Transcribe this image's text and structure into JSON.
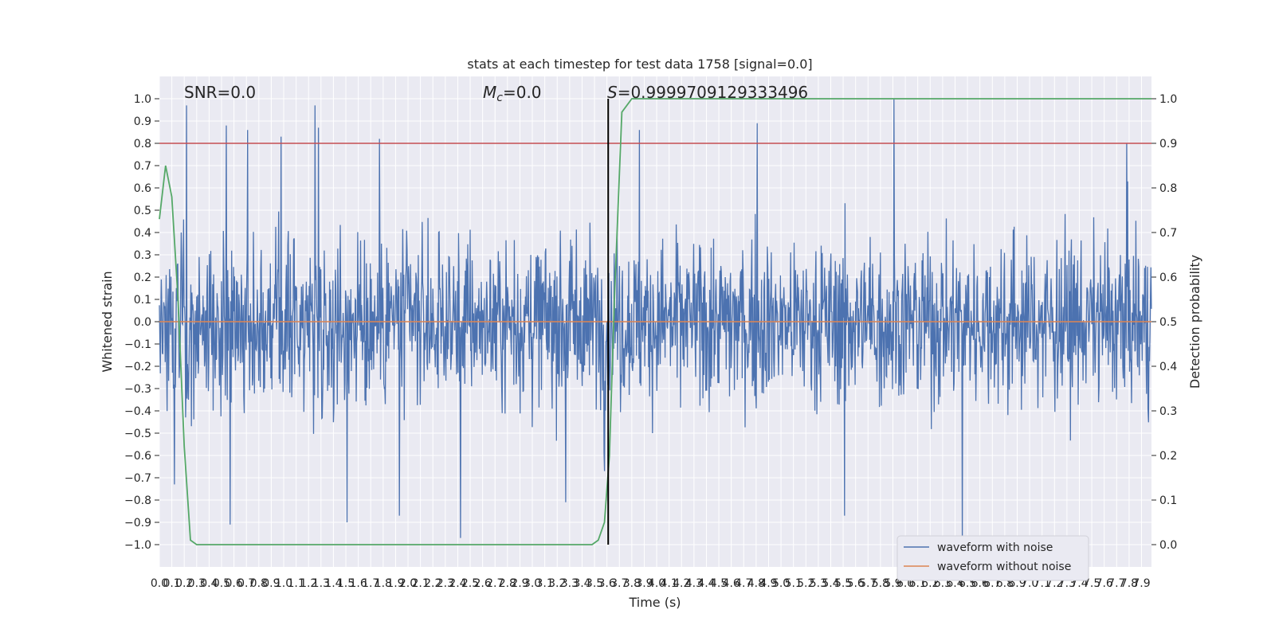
{
  "chart_data": {
    "type": "line",
    "title": "stats at each timestep for test data 1758 [signal=0.0]",
    "xlabel": "Time (s)",
    "ylabel": "Whitened strain",
    "ylabel_right": "Detection probability",
    "xlim": [
      0.0,
      7.98
    ],
    "ylim": [
      -1.1,
      1.1
    ],
    "ylim_right": [
      -0.05,
      1.05
    ],
    "x_ticks": [
      "0.0",
      "0.1",
      "0.2",
      "0.3",
      "0.4",
      "0.5",
      "0.6",
      "0.7",
      "0.8",
      "0.9",
      "1.0",
      "1.1",
      "1.2",
      "1.3",
      "1.4",
      "1.5",
      "1.6",
      "1.7",
      "1.8",
      "1.9",
      "2.0",
      "2.1",
      "2.2",
      "2.3",
      "2.4",
      "2.5",
      "2.6",
      "2.7",
      "2.8",
      "2.9",
      "3.0",
      "3.1",
      "3.2",
      "3.3",
      "3.4",
      "3.5",
      "3.6",
      "3.7",
      "3.8",
      "3.9",
      "4.0",
      "4.1",
      "4.2",
      "4.3",
      "4.4",
      "4.5",
      "4.6",
      "4.7",
      "4.8",
      "4.9",
      "5.0",
      "5.1",
      "5.2",
      "5.3",
      "5.4",
      "5.5",
      "5.6",
      "5.7",
      "5.8",
      "5.9",
      "6.0",
      "6.1",
      "6.2",
      "6.3",
      "6.4",
      "6.5",
      "6.6",
      "6.7",
      "6.8",
      "6.9",
      "7.0",
      "7.1",
      "7.2",
      "7.3",
      "7.4",
      "7.5",
      "7.6",
      "7.7",
      "7.8",
      "7.9"
    ],
    "y_ticks_left": [
      "−1.0",
      "−0.9",
      "−0.8",
      "−0.7",
      "−0.6",
      "−0.5",
      "−0.4",
      "−0.3",
      "−0.2",
      "−0.1",
      "0.0",
      "0.1",
      "0.2",
      "0.3",
      "0.4",
      "0.5",
      "0.6",
      "0.7",
      "0.8",
      "0.9",
      "1.0"
    ],
    "y_ticks_right": [
      "0.0",
      "0.1",
      "0.2",
      "0.3",
      "0.4",
      "0.5",
      "0.6",
      "0.7",
      "0.8",
      "0.9",
      "1.0"
    ],
    "annotations": {
      "snr": "SNR=0.0",
      "mc_symbol": "M",
      "mc_sub": "c",
      "mc_value": "=0.0",
      "s_symbol": "S",
      "s_value": "=0.9999709129333496"
    },
    "threshold": {
      "value": 0.8,
      "color": "#c44e52"
    },
    "peak_marker": {
      "x": 3.61,
      "color": "#000000"
    },
    "grid": true,
    "legend_position": "lower-right",
    "background": "#eaeaf2",
    "series": [
      {
        "name": "waveform with noise",
        "color": "#4c72b0",
        "axis": "left",
        "note_samples": 2048,
        "spikes": [
          {
            "x": 0.22,
            "y": 0.97
          },
          {
            "x": 0.54,
            "y": 0.88
          },
          {
            "x": 0.71,
            "y": 0.86
          },
          {
            "x": 0.98,
            "y": 0.83
          },
          {
            "x": 1.25,
            "y": 0.97
          },
          {
            "x": 1.28,
            "y": 0.87
          },
          {
            "x": 1.77,
            "y": 0.82
          },
          {
            "x": 3.86,
            "y": 0.86
          },
          {
            "x": 4.81,
            "y": 0.89
          },
          {
            "x": 5.91,
            "y": 1.0
          },
          {
            "x": 7.78,
            "y": 0.8
          },
          {
            "x": 2.42,
            "y": -0.97
          },
          {
            "x": 0.57,
            "y": -0.91
          },
          {
            "x": 1.51,
            "y": -0.9
          },
          {
            "x": 6.46,
            "y": -0.99
          },
          {
            "x": 5.51,
            "y": -0.87
          },
          {
            "x": 3.27,
            "y": -0.81
          },
          {
            "x": 1.93,
            "y": -0.87
          },
          {
            "x": 3.58,
            "y": -0.67
          },
          {
            "x": 0.12,
            "y": -0.73
          }
        ],
        "spike_step_s": 0.0039
      },
      {
        "name": "waveform without noise",
        "color": "#dd8452",
        "axis": "left",
        "x": [
          0.0,
          7.98
        ],
        "y": [
          0.0,
          0.0
        ]
      },
      {
        "name": "",
        "color": "#55a868",
        "axis": "right",
        "x": [
          0.0,
          0.05,
          0.1,
          0.15,
          0.2,
          0.25,
          0.3,
          0.4,
          0.6,
          1.0,
          2.0,
          3.0,
          3.4,
          3.48,
          3.53,
          3.58,
          3.62,
          3.66,
          3.72,
          3.8,
          4.0,
          5.0,
          6.0,
          7.0,
          7.98
        ],
        "y": [
          0.73,
          0.85,
          0.78,
          0.55,
          0.22,
          0.01,
          0.0,
          0.0,
          0.0,
          0.0,
          0.0,
          0.0,
          0.0,
          0.0,
          0.01,
          0.05,
          0.2,
          0.55,
          0.97,
          1.0,
          1.0,
          1.0,
          1.0,
          1.0,
          1.0
        ]
      }
    ]
  }
}
